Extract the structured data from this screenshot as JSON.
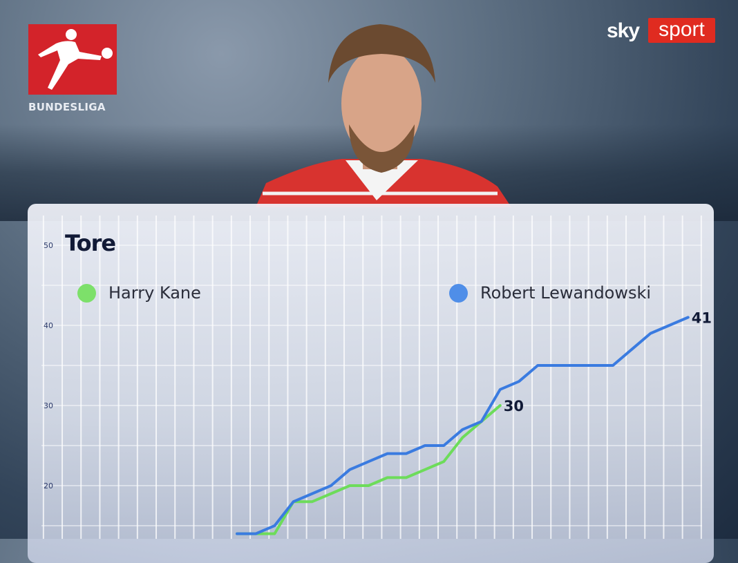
{
  "branding": {
    "league": "BUNDESLIGA",
    "broadcaster_a": "sky",
    "broadcaster_b": "sport",
    "league_color": "#d3232a",
    "broadcaster_color": "#e02b20"
  },
  "chart_data": {
    "type": "line",
    "title": "Tore",
    "xlabel": "",
    "ylabel": "",
    "xlim": [
      0,
      34
    ],
    "ylim": [
      0,
      50
    ],
    "yticks": [
      20,
      30,
      40,
      50
    ],
    "grid": true,
    "legend_placement": "top",
    "series": [
      {
        "name": "Harry Kane",
        "color": "#6ddc5a",
        "x": [
          10,
          11,
          12,
          13,
          14,
          15,
          16,
          17,
          18,
          19,
          20,
          21,
          22,
          23,
          24
        ],
        "values": [
          14,
          14,
          14,
          18,
          18,
          19,
          20,
          20,
          21,
          21,
          22,
          23,
          26,
          28,
          30
        ],
        "end_label": "30"
      },
      {
        "name": "Robert Lewandowski",
        "color": "#3a7be0",
        "x": [
          10,
          11,
          12,
          13,
          14,
          15,
          16,
          17,
          18,
          19,
          20,
          21,
          22,
          23,
          24,
          25,
          26,
          27,
          28,
          29,
          30,
          31,
          32,
          33,
          34
        ],
        "values": [
          14,
          14,
          15,
          18,
          19,
          20,
          22,
          23,
          24,
          24,
          25,
          25,
          27,
          28,
          32,
          33,
          35,
          35,
          35,
          35,
          35,
          37,
          39,
          40,
          41
        ],
        "end_label": "41"
      }
    ]
  }
}
